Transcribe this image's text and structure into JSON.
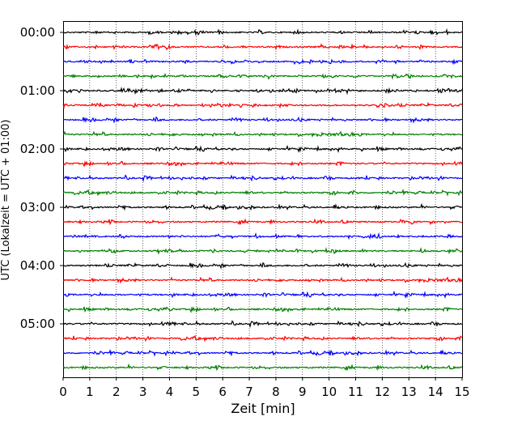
{
  "chart_data": {
    "type": "line",
    "title": "",
    "xlabel": "Zeit  [min]",
    "ylabel": "UTC (Lokalzeit = UTC + 01:00)",
    "xlim": [
      0,
      15
    ],
    "x_ticks": [
      "0",
      "1",
      "2",
      "3",
      "4",
      "5",
      "6",
      "7",
      "8",
      "9",
      "10",
      "11",
      "12",
      "13",
      "14",
      "15"
    ],
    "y_tick_labels": [
      "00:00",
      "01:00",
      "02:00",
      "03:00",
      "04:00",
      "05:00"
    ],
    "grid": "vertical dotted",
    "minutes_per_trace": 15,
    "trace_times": [
      "00:00",
      "00:15",
      "00:30",
      "00:45",
      "01:00",
      "01:15",
      "01:30",
      "01:45",
      "02:00",
      "02:15",
      "02:30",
      "02:45",
      "03:00",
      "03:15",
      "03:30",
      "03:45",
      "04:00",
      "04:15",
      "04:30",
      "04:45",
      "05:00",
      "05:15",
      "05:30",
      "05:45"
    ],
    "trace_color_cycle": [
      "#000000",
      "#ff0000",
      "#0000ff",
      "#007f00"
    ]
  }
}
